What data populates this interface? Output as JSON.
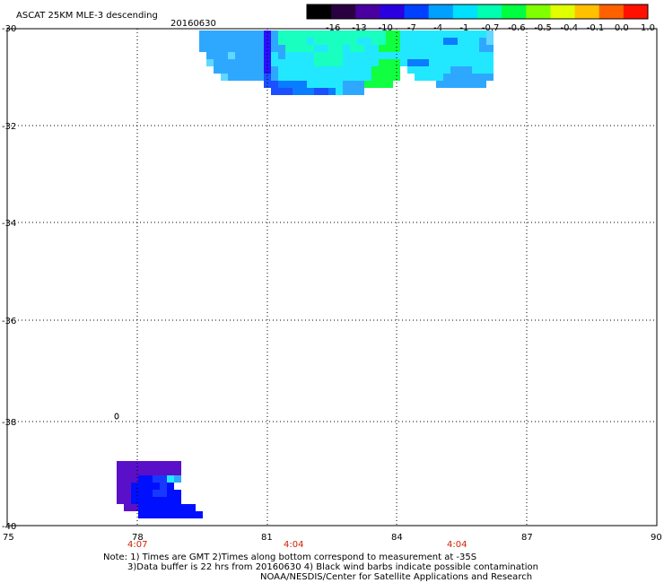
{
  "header": {
    "title": "ASCAT 25KM MLE-3 descending",
    "date": "20160630"
  },
  "colorbar": {
    "labels": [
      "-16",
      "-13",
      "-10",
      "-7",
      "-4",
      "-1",
      "-0.7",
      "-0.6",
      "-0.5",
      "-0.4",
      "-0.1",
      "0.0",
      "1.0"
    ],
    "colors": [
      "#000000",
      "#2a0040",
      "#4a00a0",
      "#2a00e0",
      "#0040ff",
      "#00a0ff",
      "#00e0ff",
      "#00ffb0",
      "#00ff40",
      "#80ff00",
      "#e0ff00",
      "#ffc000",
      "#ff6000",
      "#ff1000"
    ]
  },
  "map": {
    "lat_labels": [
      "-30",
      "-32",
      "-34",
      "-36",
      "-38",
      "-40"
    ],
    "lon_labels": [
      "75",
      "78",
      "81",
      "84",
      "87",
      "90"
    ],
    "time_labels": [
      "4:07",
      "4:04",
      "4:04"
    ]
  },
  "notes": {
    "line1": "Note: 1) Times are GMT 2)Times along bottom correspond to measurement at -35S",
    "line2": "3)Data buffer is 22 hrs from 20160630 4) Black wind barbs indicate possible contamination",
    "line3": "NOAA/NESDIS/Center for Satellite Applications and Research"
  }
}
